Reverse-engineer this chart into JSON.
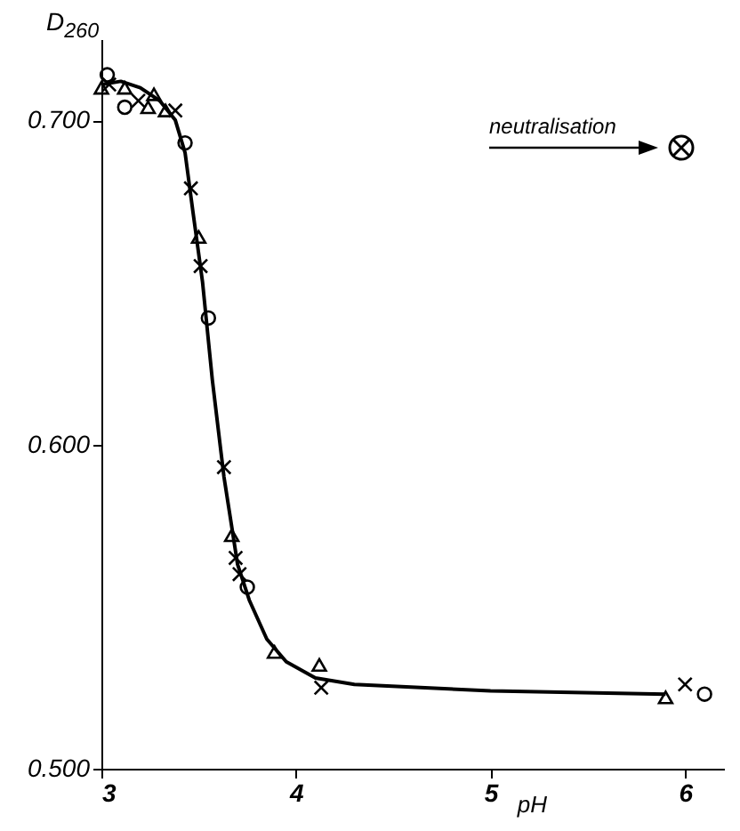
{
  "chart_data": {
    "type": "scatter",
    "ylabel": "D$_{260}$",
    "xlabel": "pH",
    "xlim": [
      3,
      6.2
    ],
    "xticks": [
      3,
      4,
      5,
      6
    ],
    "ylim": [
      0.5,
      0.725
    ],
    "yticks": [
      {
        "value": 0.5,
        "label": "0.500"
      },
      {
        "value": 0.6,
        "label": "0.600"
      },
      {
        "value": 0.7,
        "label": "0.700"
      }
    ],
    "grid": false,
    "annotations": [
      "neutralisation"
    ],
    "series": [
      {
        "type": "line",
        "marker": "none",
        "color": "#000000",
        "x": [
          3.0,
          3.1,
          3.2,
          3.3,
          3.38,
          3.43,
          3.47,
          3.52,
          3.57,
          3.63,
          3.7,
          3.76,
          3.85,
          3.95,
          4.1,
          4.3,
          5.0,
          5.9
        ],
        "values": [
          0.711,
          0.712,
          0.71,
          0.706,
          0.7,
          0.69,
          0.672,
          0.65,
          0.62,
          0.59,
          0.563,
          0.552,
          0.54,
          0.533,
          0.528,
          0.526,
          0.524,
          0.523
        ]
      },
      {
        "type": "scatter",
        "marker": "triangle",
        "color": "#000000",
        "x": [
          3.0,
          3.12,
          3.24,
          3.27,
          3.33,
          3.5,
          3.67,
          3.89,
          4.12,
          5.9
        ],
        "values": [
          0.71,
          0.71,
          0.704,
          0.708,
          0.703,
          0.664,
          0.572,
          0.536,
          0.532,
          0.522
        ]
      },
      {
        "type": "scatter",
        "marker": "circle",
        "color": "#000000",
        "x": [
          3.03,
          3.12,
          3.43,
          3.55,
          3.75,
          6.1
        ],
        "values": [
          0.714,
          0.704,
          0.693,
          0.639,
          0.556,
          0.523
        ]
      },
      {
        "type": "scatter",
        "marker": "cross",
        "color": "#000000",
        "x": [
          3.04,
          3.19,
          3.38,
          3.46,
          3.51,
          3.63,
          3.69,
          3.71,
          4.13,
          6.0
        ],
        "values": [
          0.711,
          0.706,
          0.703,
          0.679,
          0.655,
          0.593,
          0.565,
          0.56,
          0.525,
          0.526
        ]
      }
    ]
  }
}
